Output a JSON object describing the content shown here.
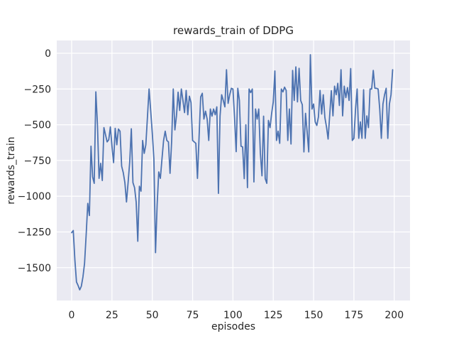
{
  "figure": {
    "title": "rewards_train of DDPG"
  },
  "colors": {
    "figure_background": "#ffffff",
    "axes_background": "#eaeaf2",
    "grid": "#ffffff",
    "text": "#262626",
    "line": "#4c72b0"
  },
  "chart_data": {
    "type": "line",
    "title": "rewards_train of DDPG",
    "xlabel": "episodes",
    "ylabel": "rewards_train",
    "x_ticks": [
      0,
      25,
      50,
      75,
      100,
      125,
      150,
      175,
      200
    ],
    "y_ticks": [
      0,
      -250,
      -500,
      -750,
      -1000,
      -1250,
      -1500
    ],
    "xlim": [
      -10,
      210
    ],
    "ylim": [
      -1730,
      90
    ],
    "grid": true,
    "legend": false,
    "style": "seaborn-darkgrid",
    "series": [
      {
        "name": "rewards_train",
        "color": "#4c72b0",
        "x_start": 0,
        "x_step": 1,
        "values": [
          -1255,
          -1240,
          -1445,
          -1600,
          -1625,
          -1655,
          -1630,
          -1565,
          -1470,
          -1270,
          -1050,
          -1135,
          -650,
          -865,
          -910,
          -270,
          -500,
          -875,
          -770,
          -890,
          -520,
          -570,
          -620,
          -605,
          -515,
          -650,
          -765,
          -525,
          -640,
          -530,
          -545,
          -790,
          -835,
          -905,
          -1040,
          -905,
          -760,
          -528,
          -905,
          -940,
          -1040,
          -1315,
          -930,
          -965,
          -610,
          -700,
          -640,
          -445,
          -250,
          -400,
          -560,
          -740,
          -1395,
          -1060,
          -830,
          -875,
          -740,
          -610,
          -545,
          -610,
          -620,
          -840,
          -615,
          -250,
          -536,
          -436,
          -272,
          -400,
          -250,
          -330,
          -415,
          -260,
          -430,
          -300,
          -345,
          -610,
          -620,
          -630,
          -875,
          -585,
          -305,
          -280,
          -460,
          -405,
          -460,
          -610,
          -390,
          -440,
          -390,
          -430,
          -375,
          -980,
          -440,
          -290,
          -330,
          -375,
          -115,
          -350,
          -290,
          -245,
          -250,
          -448,
          -688,
          -245,
          -330,
          -650,
          -655,
          -877,
          -500,
          -940,
          -250,
          -275,
          -250,
          -900,
          -390,
          -460,
          -390,
          -700,
          -857,
          -440,
          -877,
          -910,
          -470,
          -520,
          -420,
          -340,
          -124,
          -610,
          -545,
          -630,
          -250,
          -270,
          -237,
          -260,
          -610,
          -390,
          -635,
          -120,
          -330,
          -95,
          -340,
          -105,
          -330,
          -360,
          -690,
          -420,
          -550,
          -690,
          -10,
          -390,
          -355,
          -480,
          -505,
          -445,
          -260,
          -425,
          -290,
          -450,
          -515,
          -600,
          -430,
          -262,
          -438,
          -230,
          -290,
          -210,
          -365,
          -115,
          -438,
          -230,
          -310,
          -240,
          -330,
          -107,
          -610,
          -595,
          -390,
          -250,
          -595,
          -480,
          -595,
          -255,
          -595,
          -438,
          -520,
          -250,
          -250,
          -120,
          -245,
          -245,
          -250,
          -390,
          -595,
          -355,
          -290,
          -245,
          -595,
          -355,
          -290,
          -115
        ]
      }
    ]
  }
}
